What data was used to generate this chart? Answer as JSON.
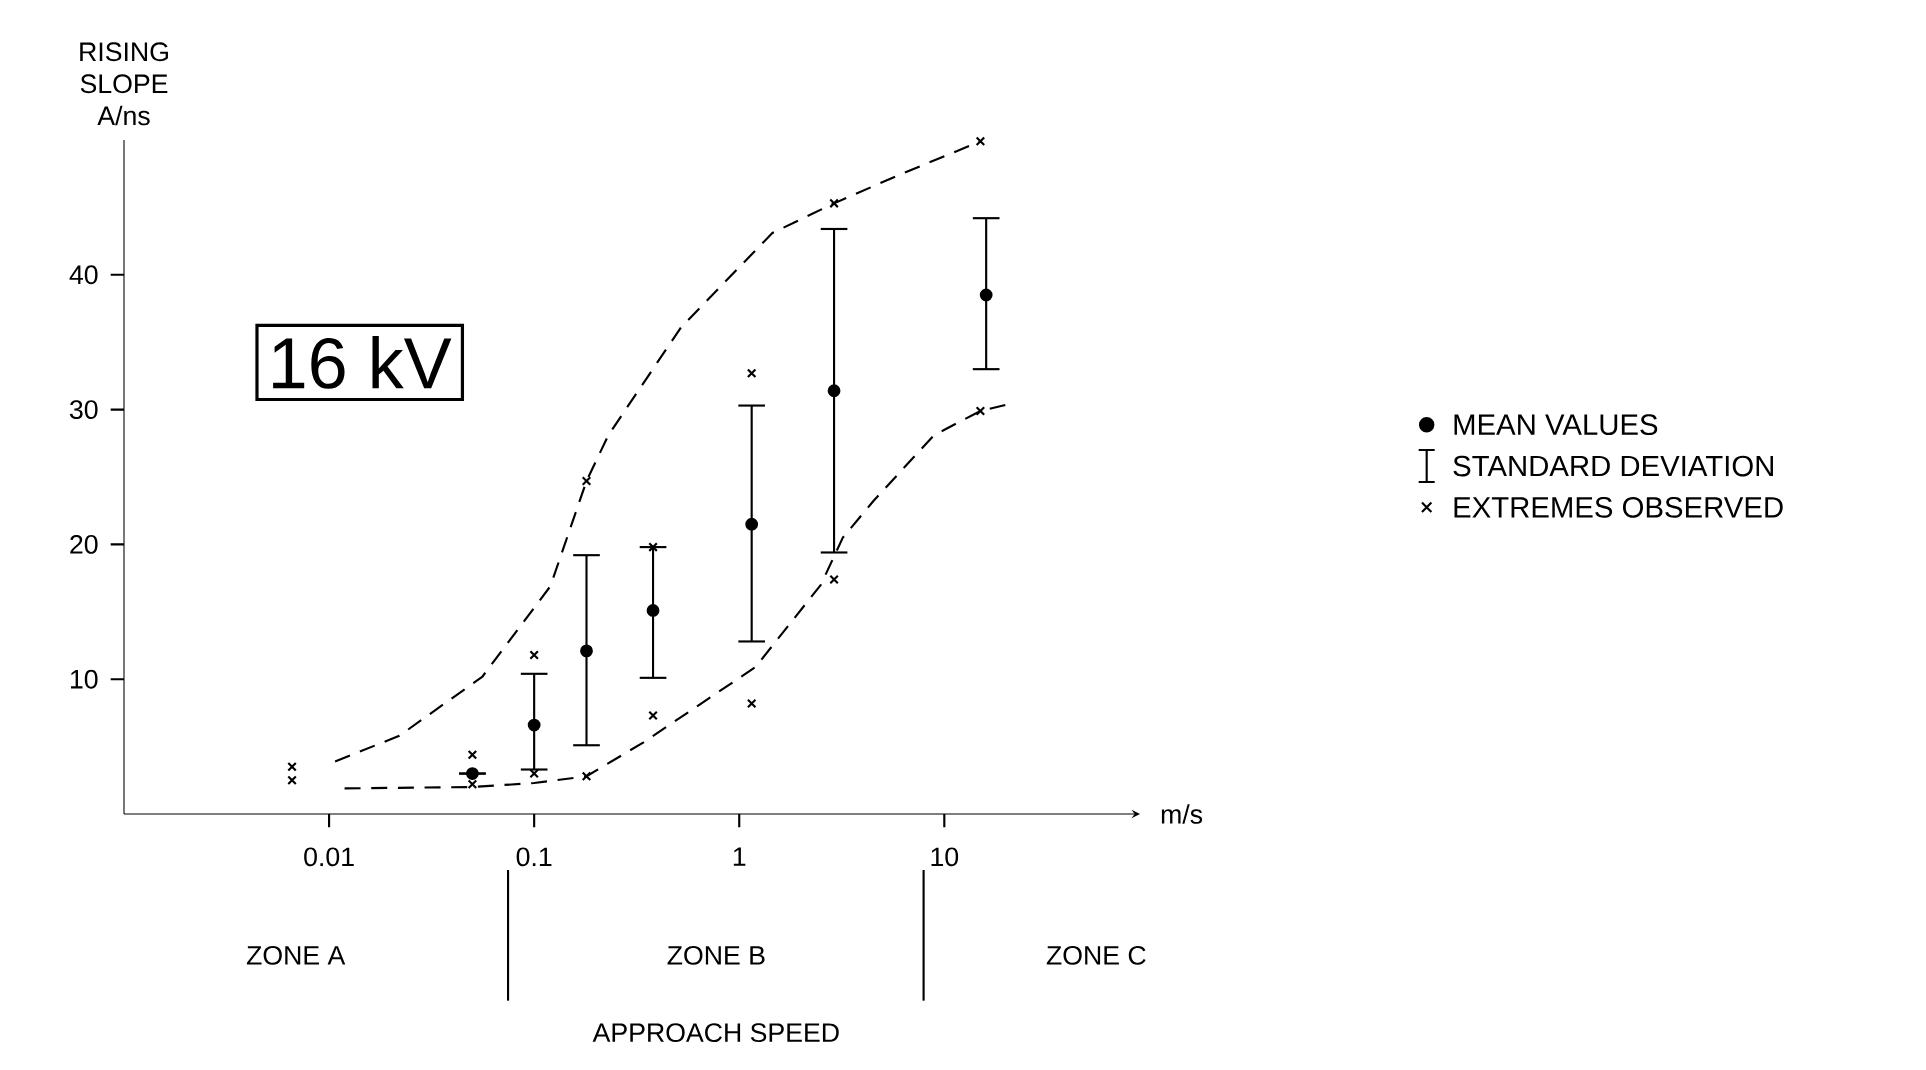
{
  "chart_data": {
    "type": "scatter",
    "xlabel": "m/s",
    "ylabel": "RISING SLOPE A/ns",
    "annotations": [
      "16 kV",
      "STANDARD DEVIATION",
      "ZONE A",
      "ZONE B",
      "ZONE C",
      "APPROACH SPEED"
    ],
    "log": "x",
    "xlim": [
      0.001,
      90
    ],
    "ylim": [
      0,
      50
    ],
    "xticks": [
      0.01,
      0.1,
      1,
      10
    ],
    "yticks": [
      10,
      20,
      30,
      40
    ],
    "legend": "right",
    "series": [
      {
        "name": "MEAN VALUES",
        "marker": "circle",
        "color": "#000000",
        "x": [
          0.05,
          0.1,
          0.18,
          0.38,
          1.15,
          2.9,
          16
        ],
        "values": [
          3,
          6.6,
          12.1,
          15.1,
          21.5,
          31.4,
          38.5
        ],
        "errors": [
          null,
          [
            3.3,
            10.4
          ],
          [
            5.1,
            19.2
          ],
          [
            10.1,
            19.8
          ],
          [
            12.8,
            30.3
          ],
          [
            19.4,
            43.4
          ],
          [
            33,
            44.2
          ]
        ]
      },
      {
        "name": "EXTREMES OBSERVED",
        "marker": "cross",
        "color": "#000000",
        "x": [
          0.0066,
          0.05,
          0.1,
          0.18,
          0.38,
          1.15,
          2.9,
          15,
          0.0066,
          0.05,
          0.1,
          0.18,
          0.38,
          1.15,
          2.9,
          15
        ],
        "values": [
          3.5,
          4.4,
          11.8,
          24.7,
          19.8,
          32.7,
          45.3,
          49.9,
          2.5,
          2.2,
          3.0,
          2.8,
          7.3,
          8.2,
          17.4,
          29.9
        ]
      },
      {
        "type": "line",
        "line_style": "dashed",
        "marker": "none",
        "color": "#000000",
        "x": [
          0.0107,
          0.022,
          0.056,
          0.12,
          0.18,
          0.23,
          0.52,
          1.45,
          2.9,
          6,
          15
        ],
        "values": [
          3.9,
          5.8,
          10.2,
          16.9,
          24.7,
          28.1,
          36.1,
          43.1,
          45.3,
          47.4,
          49.9
        ]
      },
      {
        "type": "line",
        "line_style": "dashed",
        "marker": "none",
        "color": "#000000",
        "x": [
          0.0119,
          0.05,
          0.1,
          0.18,
          0.34,
          1.2,
          2.5,
          3.2,
          4.5,
          8.9,
          15,
          20.6
        ],
        "values": [
          1.9,
          2,
          2.3,
          2.8,
          5.3,
          10.9,
          17,
          20.5,
          23.2,
          28.1,
          29.9,
          30.4
        ]
      }
    ]
  }
}
